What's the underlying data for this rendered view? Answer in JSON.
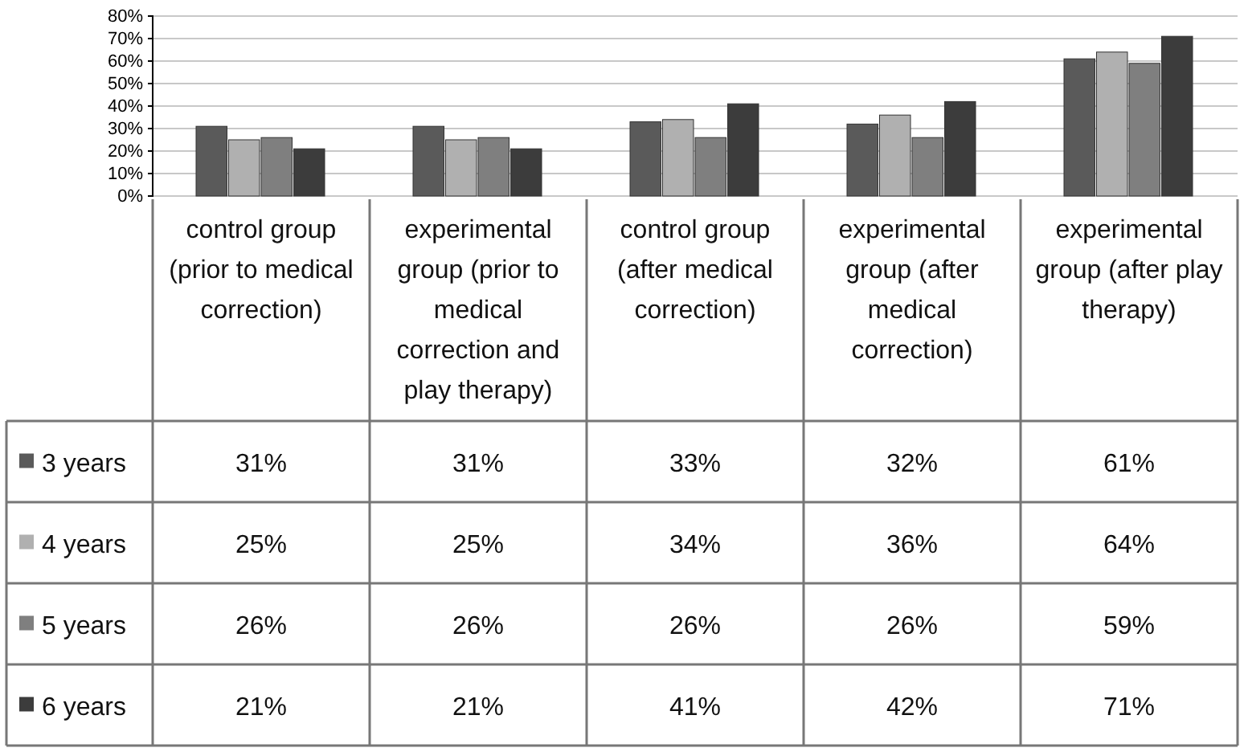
{
  "chart_data": {
    "type": "bar",
    "categories": [
      "control group (prior to medical correction)",
      "experimental group (prior to medical correction and play therapy)",
      "control group (after medical correction)",
      "experimental group (after medical correction)",
      "experimental group (after play therapy)"
    ],
    "series": [
      {
        "name": "3 years",
        "color": "#5a5a5a",
        "values": [
          31,
          31,
          33,
          32,
          61
        ],
        "value_labels": [
          "31%",
          "31%",
          "33%",
          "32%",
          "61%"
        ]
      },
      {
        "name": "4 years",
        "color": "#b0b0b0",
        "values": [
          25,
          25,
          34,
          36,
          64
        ],
        "value_labels": [
          "25%",
          "25%",
          "34%",
          "36%",
          "64%"
        ]
      },
      {
        "name": "5 years",
        "color": "#7f7f7f",
        "values": [
          26,
          26,
          26,
          26,
          59
        ],
        "value_labels": [
          "26%",
          "26%",
          "26%",
          "26%",
          "59%"
        ]
      },
      {
        "name": "6 years",
        "color": "#3c3c3c",
        "values": [
          21,
          21,
          41,
          42,
          71
        ],
        "value_labels": [
          "21%",
          "21%",
          "41%",
          "42%",
          "71%"
        ]
      }
    ],
    "ylim": [
      0,
      80
    ],
    "yticks": [
      {
        "value": 0,
        "label": "0%"
      },
      {
        "value": 10,
        "label": "10%"
      },
      {
        "value": 20,
        "label": "20%"
      },
      {
        "value": 30,
        "label": "30%"
      },
      {
        "value": 40,
        "label": "40%"
      },
      {
        "value": 50,
        "label": "50%"
      },
      {
        "value": 60,
        "label": "60%"
      },
      {
        "value": 70,
        "label": "70%"
      },
      {
        "value": 80,
        "label": "80%"
      }
    ],
    "grid": "y",
    "legend": "bottom left"
  }
}
